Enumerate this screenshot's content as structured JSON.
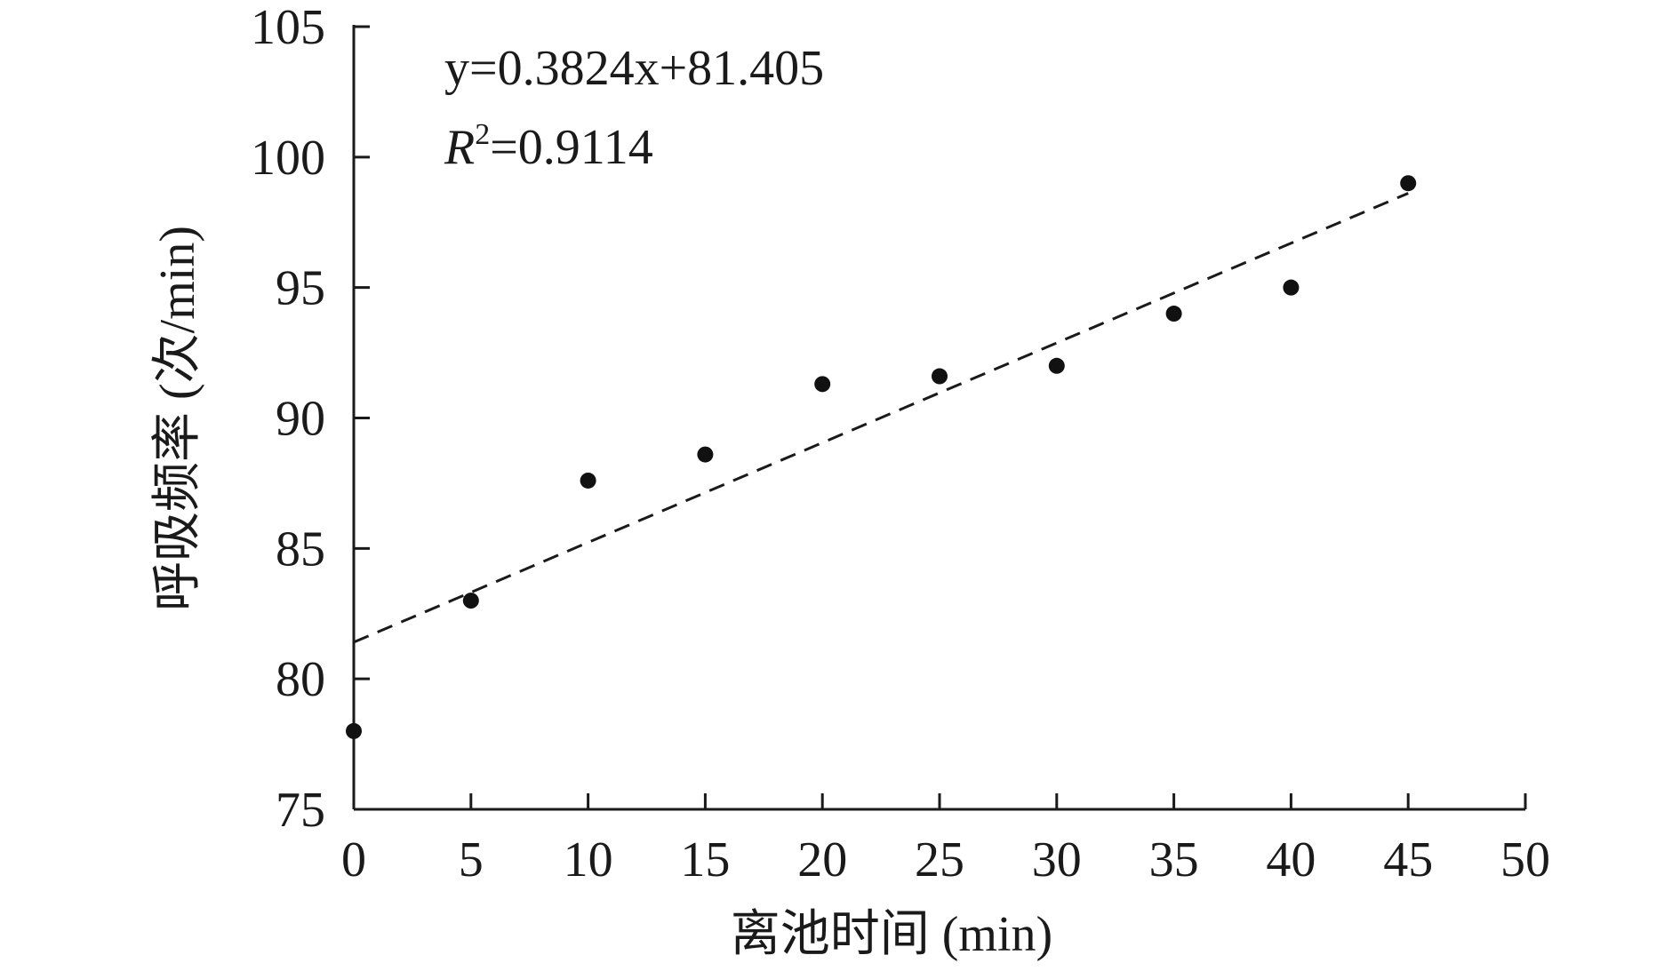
{
  "chart_data": {
    "type": "scatter",
    "title": "",
    "xlabel": "离池时间 (min)",
    "ylabel": "呼吸频率 (次/min)",
    "xlim": [
      0,
      50
    ],
    "ylim": [
      75,
      105
    ],
    "xticks": [
      0,
      5,
      10,
      15,
      20,
      25,
      30,
      35,
      40,
      45,
      50
    ],
    "yticks": [
      75,
      80,
      85,
      90,
      95,
      100,
      105
    ],
    "grid": false,
    "legend": "none",
    "series": [
      {
        "x": [
          0,
          5,
          10,
          15,
          20,
          25,
          30,
          35,
          40,
          45
        ],
        "y": [
          78,
          83,
          87.6,
          88.6,
          91.3,
          91.6,
          92,
          94,
          95,
          99
        ],
        "color": "#111111"
      }
    ],
    "trendline": {
      "slope": 0.3824,
      "intercept": 81.405,
      "x_range": [
        0,
        45
      ],
      "style": "dashed",
      "color": "#1a1a1a"
    },
    "annotations": {
      "equation": "y=0.3824x+81.405",
      "r2_symbol": "R",
      "r2_superscript": "2",
      "r2_value": "=0.9114"
    }
  }
}
